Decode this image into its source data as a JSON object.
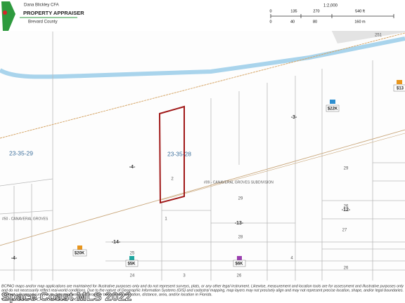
{
  "header": {
    "agency_line1": "Dana Blickley CFA",
    "agency_line2": "PROPERTY APPRAISER",
    "agency_line3": "Brevard County"
  },
  "scale": {
    "ratio": "1:2,000",
    "feet_ticks": [
      "0",
      "135",
      "270",
      "540 ft"
    ],
    "meter_ticks": [
      "0",
      "40",
      "80",
      "160 m"
    ]
  },
  "labels": {
    "road": "251",
    "section_west": "23-35-29",
    "section_east": "23-35-28",
    "subdivision_east": "#09 - CANAVERAL GROVES SUBDIVISION",
    "subdivision_west": "#50 - CANAVERAL GROVES",
    "blocks": [
      "-4-",
      "-3-",
      "-12-",
      "-13-",
      "-14-",
      "-4-"
    ],
    "lots": [
      "29",
      "28",
      "25",
      "24",
      "3",
      "4",
      "26",
      "29",
      "26",
      "27",
      "26",
      "1",
      "2"
    ]
  },
  "sales": [
    "$22K",
    "$13",
    "$20K",
    "$5K",
    "$6K"
  ],
  "disclaimer": [
    "BCPAO maps and/or map applications are maintained for illustrative purposes only and do not represent surveys, plats, or any other legal instrument. Likewise, measurement and location tools are for assessment and illustrative purposes only",
    "and do not necessarily reflect real-world conditions. Due to the nature of Geographic Information Systems (GIS) and cadastral mapping, map layers may not precisely align and may not represent precise location, shape, and/or legal boundaries.",
    "Contact a licensed surveyor to determine relevant property boundaries, elevation, distance, area, and/or location in Florida.",
    "Generated October 4, 2022"
  ],
  "watermark": "Space Coast MLS 2022"
}
